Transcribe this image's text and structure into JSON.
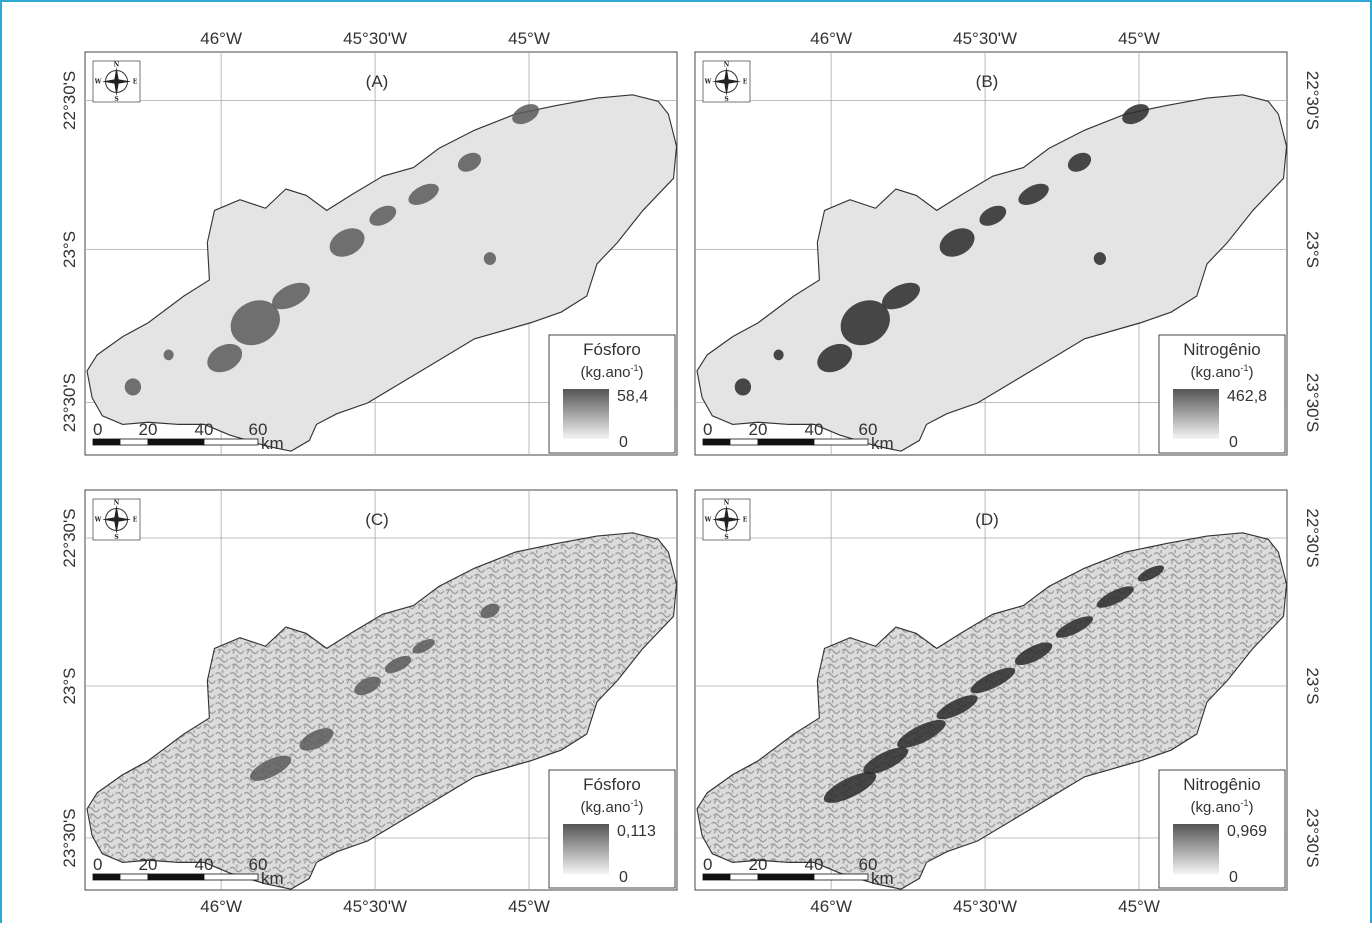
{
  "figure": {
    "top_axis_labels": [
      "46°W",
      "45°30'W",
      "45°W"
    ],
    "bottom_axis_labels": [
      "46°W",
      "45°30'W",
      "45°W"
    ],
    "side_axis_labels": [
      "22°30'S",
      "23°S",
      "23°30'S"
    ],
    "scale_bar": {
      "ticks": [
        "0",
        "20",
        "40",
        "60"
      ],
      "unit": "km"
    },
    "compass": {
      "n": "N",
      "s": "S",
      "e": "E",
      "w": "W"
    }
  },
  "panels": [
    {
      "id": "A",
      "label": "(A)",
      "legend": {
        "title": "Fósforo",
        "unit_prefix": "(kg.ano",
        "unit_exp": "-1",
        "unit_suffix": ")",
        "max": "58,4",
        "min": "0"
      }
    },
    {
      "id": "B",
      "label": "(B)",
      "legend": {
        "title": "Nitrogênio",
        "unit_prefix": "(kg.ano",
        "unit_exp": "-1",
        "unit_suffix": ")",
        "max": "462,8",
        "min": "0"
      }
    },
    {
      "id": "C",
      "label": "(C)",
      "legend": {
        "title": "Fósforo",
        "unit_prefix": "(kg.ano",
        "unit_exp": "-1",
        "unit_suffix": ")",
        "max": "0,113",
        "min": "0"
      }
    },
    {
      "id": "D",
      "label": "(D)",
      "legend": {
        "title": "Nitrogênio",
        "unit_prefix": "(kg.ano",
        "unit_exp": "-1",
        "unit_suffix": ")",
        "max": "0,969",
        "min": "0"
      }
    }
  ],
  "colors": {
    "border": "#2fa8d6",
    "basin_fill_light": "#e6e6e6",
    "basin_fill_network": "#b5b5b5",
    "hotspot": "#4a4a4a",
    "grid": "#aaaaaa"
  }
}
